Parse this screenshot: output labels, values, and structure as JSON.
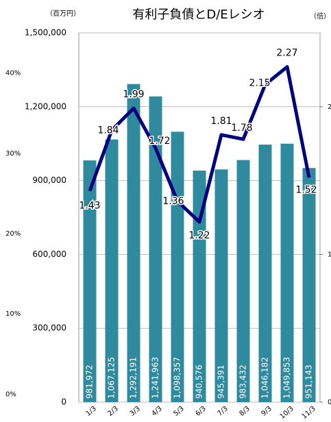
{
  "chart_data": {
    "type": "bar_line",
    "title": "有利子負債とD/Eレシオ",
    "y_unit": "（百万円）",
    "y2_unit": "（倍）",
    "categories": [
      "1/3",
      "2/3",
      "3/3",
      "4/3",
      "5/3",
      "6/3",
      "7/3",
      "8/3",
      "9/3",
      "10/3",
      "11/3"
    ],
    "series": [
      {
        "name": "有利子負債",
        "color": "#2f8a9e",
        "values": [
          981972,
          1067125,
          1292191,
          1241963,
          1098357,
          940576,
          945391,
          983432,
          1046182,
          1049853,
          951143
        ],
        "value_labels": [
          "981,972",
          "1,067,125",
          "1,292,191",
          "1,241,963",
          "1,098,357",
          "940,576",
          "945,391",
          "983,432",
          "1,046,182",
          "1,049,853",
          "951,143"
        ]
      },
      {
        "name": "D/Eレシオ",
        "color": "#000080",
        "axis": "y2",
        "values": [
          1.43,
          1.84,
          1.99,
          1.72,
          1.36,
          1.22,
          1.81,
          1.78,
          2.15,
          2.27,
          1.52
        ]
      }
    ],
    "ylim": [
      0,
      1500000
    ],
    "yticks": [
      {
        "value": 0,
        "label": "0"
      },
      {
        "value": 300000,
        "label": "300,000"
      },
      {
        "value": 600000,
        "label": "600,000"
      },
      {
        "value": 900000,
        "label": "900,000"
      },
      {
        "value": 1200000,
        "label": "1,200,000"
      },
      {
        "value": 1500000,
        "label": "1,500,000"
      }
    ],
    "y2lim": [
      0,
      2.5
    ],
    "y2ticks": [
      0,
      1,
      2
    ],
    "y3lim": [
      -1,
      45
    ],
    "y3ticks": [
      {
        "value": 0,
        "label": "0%"
      },
      {
        "value": 10,
        "label": "10%"
      },
      {
        "value": 20,
        "label": "20%"
      },
      {
        "value": 30,
        "label": "30%"
      },
      {
        "value": 40,
        "label": "40%"
      }
    ],
    "grid": true
  }
}
